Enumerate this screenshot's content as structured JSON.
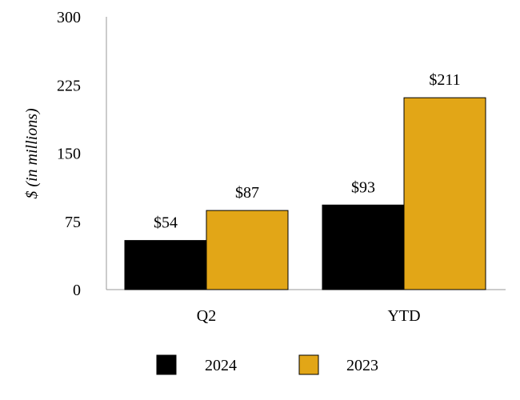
{
  "chart_data": {
    "type": "bar",
    "categories": [
      "Q2",
      "YTD"
    ],
    "series": [
      {
        "name": "2024",
        "values": [
          54,
          93
        ],
        "color": "#000000",
        "labels": [
          "$54",
          "$93"
        ]
      },
      {
        "name": "2023",
        "values": [
          87,
          211
        ],
        "color": "#E2A617",
        "labels": [
          "$87",
          "$211"
        ]
      }
    ],
    "ylabel": "$ (in millions)",
    "ylim": [
      0,
      300
    ],
    "yticks": [
      "0",
      "75",
      "150",
      "225",
      "300"
    ],
    "ytick_values": [
      0,
      75,
      150,
      225,
      300
    ],
    "grid": false,
    "legend_position": "bottom"
  }
}
